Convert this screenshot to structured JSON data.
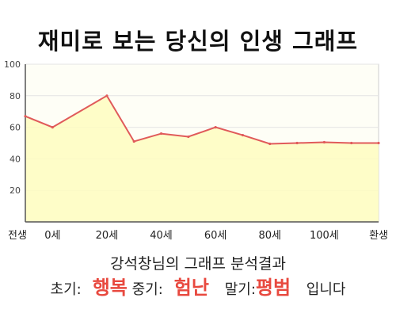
{
  "title": "재미로 보는 당신의 인생 그래프",
  "subtitle": "강석창님의 그래프 분석결과",
  "summary": {
    "early_label": "초기:",
    "early_value": "행복",
    "mid_label": "중기:",
    "mid_value": "험난",
    "late_label": "말기:",
    "late_value": "평범",
    "ending": "입니다"
  },
  "colors": {
    "fill_top": "#fefef6",
    "fill_bottom": "#fefdc0",
    "line": "#e05a5a",
    "accent": "#e8493f"
  },
  "chart_data": {
    "type": "area",
    "x_tick_labels": [
      "전생",
      "0세",
      "20세",
      "40세",
      "60세",
      "80세",
      "100세",
      "환생"
    ],
    "y_tick_labels": [
      "100",
      "80",
      "60",
      "40",
      "20"
    ],
    "ylim": [
      0,
      100
    ],
    "grid": true,
    "x": [
      -10,
      0,
      20,
      30,
      40,
      50,
      60,
      70,
      80,
      90,
      100,
      110,
      120
    ],
    "values": [
      67,
      60,
      80,
      51,
      56,
      54,
      60,
      55,
      49.5,
      50,
      50.5,
      50,
      50
    ]
  }
}
